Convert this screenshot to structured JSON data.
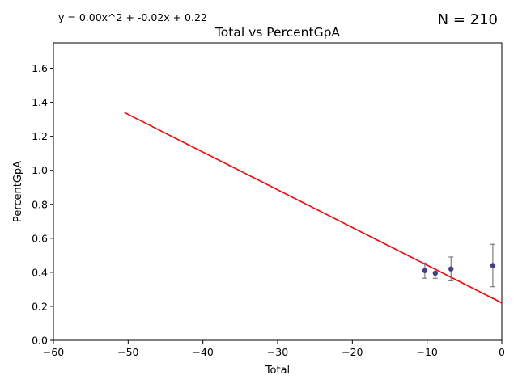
{
  "chart_data": {
    "type": "scatter",
    "title": "Total vs PercentGpA",
    "xlabel": "Total",
    "ylabel": "PercentGpA",
    "equation": "y = 0.00x^2 + -0.02x + 0.22",
    "sample_size": "N = 210",
    "xlim": [
      -60,
      0
    ],
    "ylim": [
      0.0,
      1.75
    ],
    "xticks": [
      -60,
      -50,
      -40,
      -30,
      -20,
      -10,
      0
    ],
    "yticks": [
      0.0,
      0.2,
      0.4,
      0.6,
      0.8,
      1.0,
      1.2,
      1.4,
      1.6
    ],
    "grid": false,
    "colors": {
      "points": "#483d8b",
      "fit": "#ff0000",
      "errorbar": "#666666"
    },
    "points": [
      {
        "x": -10.3,
        "y": 0.41,
        "err": 0.045
      },
      {
        "x": -8.9,
        "y": 0.395,
        "err": 0.03
      },
      {
        "x": -6.8,
        "y": 0.42,
        "err": 0.07
      },
      {
        "x": -1.2,
        "y": 0.44,
        "err": 0.125
      }
    ],
    "fit_line": {
      "x": [
        -50.5,
        0
      ],
      "y": [
        1.34,
        0.22
      ]
    }
  }
}
